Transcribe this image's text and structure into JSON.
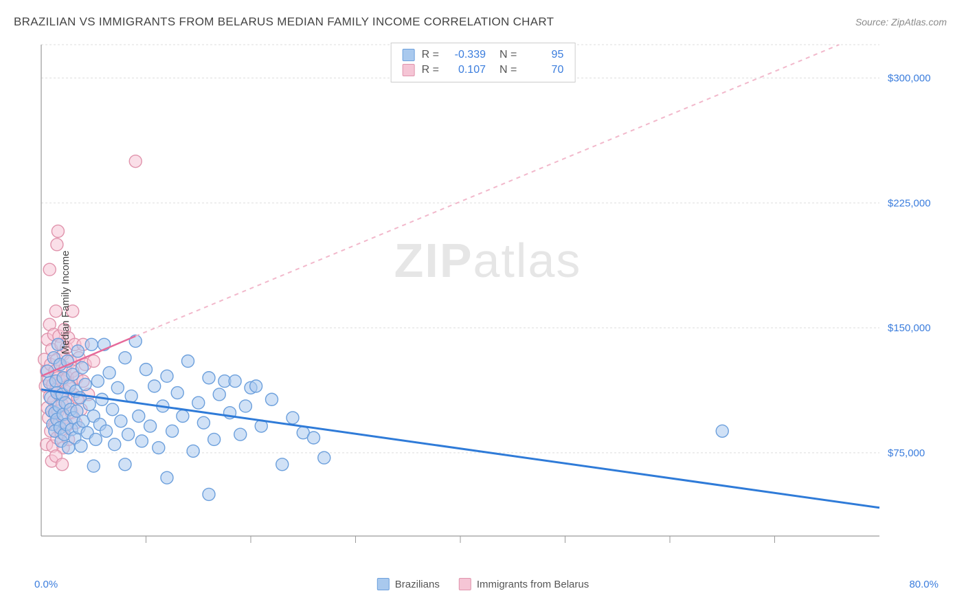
{
  "title": "BRAZILIAN VS IMMIGRANTS FROM BELARUS MEDIAN FAMILY INCOME CORRELATION CHART",
  "source": "Source: ZipAtlas.com",
  "watermark": {
    "zip": "ZIP",
    "atlas": "atlas"
  },
  "chart": {
    "type": "scatter",
    "ylabel": "Median Family Income",
    "xlim": [
      0,
      80
    ],
    "ylim": [
      25000,
      320000
    ],
    "x_min_label": "0.0%",
    "x_max_label": "80.0%",
    "yticks": [
      75000,
      150000,
      225000,
      300000
    ],
    "ytick_labels": [
      "$75,000",
      "$150,000",
      "$225,000",
      "$300,000"
    ],
    "hgrid_extra": [
      320000
    ],
    "xticks": [
      10,
      20,
      30,
      40,
      50,
      60,
      70
    ],
    "background_color": "#ffffff",
    "grid_color": "#dddddd",
    "axis_color": "#9a9a9a",
    "tick_fontsize": 15,
    "label_fontsize": 15,
    "title_fontsize": 17,
    "marker_radius": 9,
    "marker_stroke_width": 1.4,
    "series": {
      "brazilians": {
        "label": "Brazilians",
        "fill": "#a9c9ee",
        "stroke": "#6b9fdc",
        "fill_opacity": 0.55,
        "R": -0.339,
        "N": 95,
        "trend": {
          "x1": 0,
          "y1": 113000,
          "x2": 80,
          "y2": 42000,
          "color": "#2f7bd8",
          "width": 3,
          "dash": "none"
        },
        "points": [
          [
            0.6,
            124000
          ],
          [
            0.8,
            117000
          ],
          [
            0.9,
            108000
          ],
          [
            1.0,
            100000
          ],
          [
            1.1,
            92000
          ],
          [
            1.2,
            132000
          ],
          [
            1.3,
            99000
          ],
          [
            1.3,
            88000
          ],
          [
            1.4,
            118000
          ],
          [
            1.5,
            111000
          ],
          [
            1.5,
            95000
          ],
          [
            1.6,
            140000
          ],
          [
            1.7,
            103000
          ],
          [
            1.8,
            90000
          ],
          [
            1.8,
            128000
          ],
          [
            1.9,
            82000
          ],
          [
            2.0,
            110000
          ],
          [
            2.1,
            98000
          ],
          [
            2.1,
            120000
          ],
          [
            2.2,
            86000
          ],
          [
            2.3,
            105000
          ],
          [
            2.4,
            92000
          ],
          [
            2.5,
            130000
          ],
          [
            2.6,
            78000
          ],
          [
            2.7,
            115000
          ],
          [
            2.8,
            101000
          ],
          [
            2.9,
            89000
          ],
          [
            3.0,
            122000
          ],
          [
            3.1,
            96000
          ],
          [
            3.2,
            84000
          ],
          [
            3.3,
            112000
          ],
          [
            3.4,
            100000
          ],
          [
            3.5,
            136000
          ],
          [
            3.6,
            90000
          ],
          [
            3.7,
            108000
          ],
          [
            3.8,
            79000
          ],
          [
            3.9,
            126000
          ],
          [
            4.0,
            94000
          ],
          [
            4.2,
            116000
          ],
          [
            4.4,
            87000
          ],
          [
            4.6,
            104000
          ],
          [
            4.8,
            140000
          ],
          [
            5.0,
            97000
          ],
          [
            5.2,
            83000
          ],
          [
            5.4,
            118000
          ],
          [
            5.6,
            92000
          ],
          [
            5.8,
            107000
          ],
          [
            6.0,
            140000
          ],
          [
            6.2,
            88000
          ],
          [
            6.5,
            123000
          ],
          [
            6.8,
            101000
          ],
          [
            7.0,
            80000
          ],
          [
            7.3,
            114000
          ],
          [
            7.6,
            94000
          ],
          [
            8.0,
            132000
          ],
          [
            8.3,
            86000
          ],
          [
            8.6,
            109000
          ],
          [
            9.0,
            142000
          ],
          [
            9.3,
            97000
          ],
          [
            9.6,
            82000
          ],
          [
            10.0,
            125000
          ],
          [
            10.4,
            91000
          ],
          [
            10.8,
            115000
          ],
          [
            11.2,
            78000
          ],
          [
            11.6,
            103000
          ],
          [
            12.0,
            121000
          ],
          [
            12.5,
            88000
          ],
          [
            13.0,
            111000
          ],
          [
            13.5,
            97000
          ],
          [
            14.0,
            130000
          ],
          [
            14.5,
            76000
          ],
          [
            15.0,
            105000
          ],
          [
            15.5,
            93000
          ],
          [
            16.0,
            120000
          ],
          [
            16.5,
            83000
          ],
          [
            17.0,
            110000
          ],
          [
            17.5,
            118000
          ],
          [
            18.0,
            99000
          ],
          [
            18.5,
            118000
          ],
          [
            19.0,
            86000
          ],
          [
            19.5,
            103000
          ],
          [
            20.0,
            114000
          ],
          [
            20.5,
            115000
          ],
          [
            21.0,
            91000
          ],
          [
            22.0,
            107000
          ],
          [
            23.0,
            68000
          ],
          [
            24.0,
            96000
          ],
          [
            25.0,
            87000
          ],
          [
            26.0,
            84000
          ],
          [
            27.0,
            72000
          ],
          [
            12.0,
            60000
          ],
          [
            16.0,
            50000
          ],
          [
            8.0,
            68000
          ],
          [
            5.0,
            67000
          ],
          [
            65.0,
            88000
          ]
        ]
      },
      "belarus": {
        "label": "Immigrants from Belarus",
        "fill": "#f5c5d5",
        "stroke": "#e093ac",
        "fill_opacity": 0.55,
        "R": 0.107,
        "N": 70,
        "trend_solid": {
          "x1": 0,
          "y1": 121000,
          "x2": 9,
          "y2": 145000,
          "color": "#e66a9a",
          "width": 2.5
        },
        "trend_dashed": {
          "x1": 9,
          "y1": 145000,
          "x2": 80,
          "y2": 330000,
          "color": "#f2b8cb",
          "width": 2,
          "dash": "6,6"
        },
        "points": [
          [
            0.3,
            131000
          ],
          [
            0.4,
            115000
          ],
          [
            0.5,
            124000
          ],
          [
            0.5,
            80000
          ],
          [
            0.6,
            143000
          ],
          [
            0.6,
            102000
          ],
          [
            0.7,
            119000
          ],
          [
            0.7,
            96000
          ],
          [
            0.8,
            152000
          ],
          [
            0.8,
            109000
          ],
          [
            0.9,
            128000
          ],
          [
            0.9,
            88000
          ],
          [
            1.0,
            137000
          ],
          [
            1.0,
            100000
          ],
          [
            1.1,
            116000
          ],
          [
            1.1,
            79000
          ],
          [
            1.2,
            146000
          ],
          [
            1.2,
            106000
          ],
          [
            1.3,
            124000
          ],
          [
            1.3,
            92000
          ],
          [
            1.4,
            160000
          ],
          [
            1.4,
            113000
          ],
          [
            1.5,
            131000
          ],
          [
            1.5,
            84000
          ],
          [
            1.6,
            120000
          ],
          [
            1.6,
            100000
          ],
          [
            1.7,
            145000
          ],
          [
            1.7,
            93000
          ],
          [
            1.8,
            109000
          ],
          [
            1.8,
            128000
          ],
          [
            1.9,
            140000
          ],
          [
            1.9,
            87000
          ],
          [
            2.0,
            118000
          ],
          [
            2.0,
            104000
          ],
          [
            2.1,
            134000
          ],
          [
            2.1,
            78000
          ],
          [
            2.2,
            149000
          ],
          [
            2.2,
            96000
          ],
          [
            2.3,
            112000
          ],
          [
            2.3,
            126000
          ],
          [
            2.4,
            138000
          ],
          [
            2.4,
            91000
          ],
          [
            2.5,
            120000
          ],
          [
            2.5,
            104000
          ],
          [
            2.6,
            144000
          ],
          [
            2.6,
            83000
          ],
          [
            2.7,
            116000
          ],
          [
            2.8,
            130000
          ],
          [
            2.9,
            99000
          ],
          [
            3.0,
            124000
          ],
          [
            3.1,
            110000
          ],
          [
            3.2,
            140000
          ],
          [
            3.3,
            93000
          ],
          [
            3.4,
            120000
          ],
          [
            3.5,
            108000
          ],
          [
            3.6,
            132000
          ],
          [
            3.8,
            101000
          ],
          [
            4.0,
            118000
          ],
          [
            4.2,
            128000
          ],
          [
            4.5,
            110000
          ],
          [
            1.0,
            70000
          ],
          [
            1.4,
            73000
          ],
          [
            2.0,
            68000
          ],
          [
            0.8,
            185000
          ],
          [
            1.5,
            200000
          ],
          [
            1.6,
            208000
          ],
          [
            3.0,
            160000
          ],
          [
            4.0,
            140000
          ],
          [
            5.0,
            130000
          ],
          [
            9.0,
            250000
          ]
        ]
      }
    }
  },
  "legend_bottom": [
    {
      "key": "brazilians"
    },
    {
      "key": "belarus"
    }
  ]
}
